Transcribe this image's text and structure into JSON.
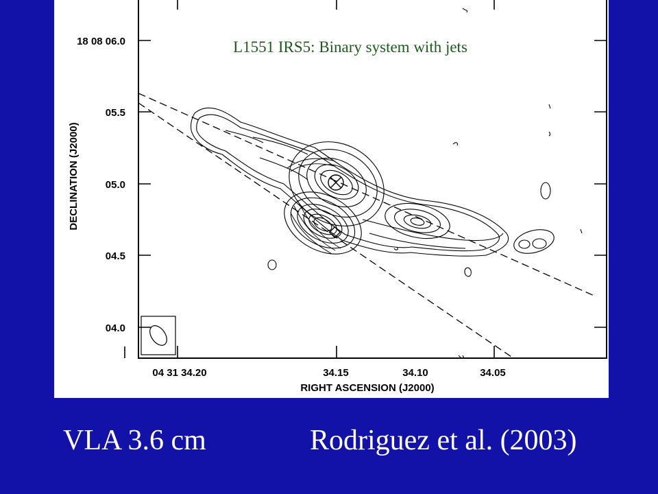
{
  "figure": {
    "title": "L1551 IRS5: Binary system with jets",
    "title_color": "#1a5c1a",
    "y_axis_label": "DECLINATION (J2000)",
    "x_axis_label": "RIGHT ASCENSION (J2000)",
    "y_ticks": [
      "18 08 06.0",
      "05.5",
      "05.0",
      "04.5",
      "04.0"
    ],
    "x_ticks": [
      "04 31 34.20",
      "34.15",
      "34.10",
      "34.05"
    ],
    "source_markers": [
      "cross-in-circle",
      "diamond"
    ]
  },
  "captions": {
    "left": "VLA 3.6 cm",
    "right": "Rodriguez et al. (2003)"
  },
  "colors": {
    "background": "#1212a8",
    "panel": "#ffffff",
    "caption_text": "#ffffff"
  }
}
